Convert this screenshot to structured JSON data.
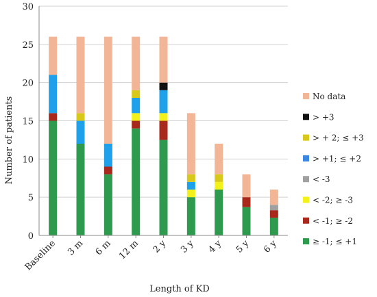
{
  "chart_data": {
    "type": "bar",
    "stacked": true,
    "xlabel": "Length of KD",
    "ylabel": "Number of patients",
    "ylim": [
      0,
      30
    ],
    "yticks": [
      0,
      5,
      10,
      15,
      20,
      25,
      30
    ],
    "grid": "horizontal",
    "legend_position": "right",
    "categories": [
      "Baseline",
      "3 m",
      "6 m",
      "12 m",
      "2 y",
      "3 y",
      "4 y",
      "5 y",
      "6 y"
    ],
    "series": [
      {
        "name": "≥ -1; ≤ +1",
        "color": "#2e9a4e",
        "values": [
          15,
          12,
          8,
          14,
          12.5,
          5,
          6,
          3.7,
          2.3
        ]
      },
      {
        "name": "< -1; ≥ -2",
        "color": "#a8281c",
        "values": [
          1,
          0,
          1,
          1,
          2.5,
          0,
          0,
          1.3,
          1
        ]
      },
      {
        "name": "< -2;  ≥ -3",
        "color": "#f2f21a",
        "values": [
          0,
          0,
          0,
          1,
          1,
          1,
          1,
          0,
          0
        ]
      },
      {
        "name": "< -3",
        "color": "#a0a0a0",
        "values": [
          0,
          0,
          0,
          0,
          0,
          0,
          0,
          0,
          0.7
        ]
      },
      {
        "name": "> +1; ≤ +2",
        "color": "#1ea0ea",
        "values": [
          5,
          3,
          3,
          2,
          3,
          1,
          0,
          0,
          0
        ]
      },
      {
        "name": "> + 2; ≤ +3",
        "color": "#d8c81a",
        "values": [
          0,
          1,
          0,
          1,
          0,
          1,
          1,
          0,
          0
        ]
      },
      {
        "name": "> +3",
        "color": "#111111",
        "values": [
          0,
          0,
          0,
          0,
          1,
          0,
          0,
          0,
          0
        ]
      },
      {
        "name": "No data",
        "color": "#f2b596",
        "values": [
          5,
          10,
          14,
          7,
          6,
          8,
          4,
          3,
          2
        ]
      }
    ],
    "legend_order": [
      "No data",
      "> +3",
      "> + 2; ≤ +3",
      "> +1; ≤ +2",
      "< -3",
      "< -2;  ≥ -3",
      "< -1; ≥ -2",
      "≥ -1; ≤ +1"
    ],
    "legend_colors": {
      "No data": "#f2b596",
      "> +3": "#111111",
      "> + 2; ≤ +3": "#d8c81a",
      "> +1; ≤ +2": "#3a86e0",
      "< -3": "#a0a0a0",
      "< -2;  ≥ -3": "#f2f21a",
      "< -1; ≥ -2": "#a8281c",
      "≥ -1; ≤ +1": "#2e9a4e"
    }
  }
}
